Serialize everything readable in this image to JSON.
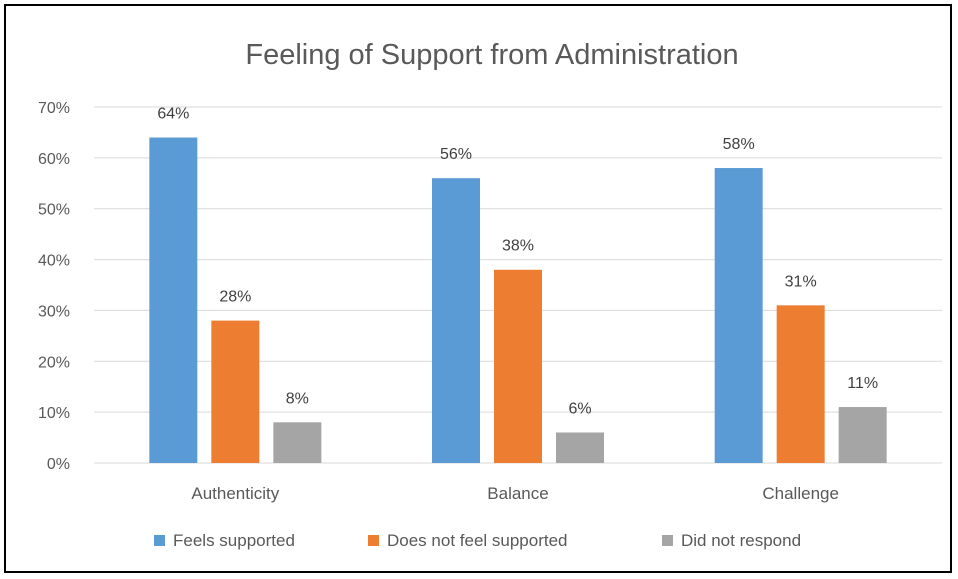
{
  "chart_data": {
    "type": "bar",
    "title": "Feeling of Support from Administration",
    "categories": [
      "Authenticity",
      "Balance",
      "Challenge"
    ],
    "series": [
      {
        "name": "Feels supported",
        "values": [
          64,
          56,
          58
        ],
        "color": "#5B9BD5",
        "labels": [
          "64%",
          "56%",
          "58%"
        ]
      },
      {
        "name": "Does not feel supported",
        "values": [
          28,
          38,
          31
        ],
        "color": "#ED7D31",
        "labels": [
          "28%",
          "38%",
          "31%"
        ]
      },
      {
        "name": "Did not respond",
        "values": [
          8,
          6,
          11
        ],
        "color": "#A5A5A5",
        "labels": [
          "8%",
          "6%",
          "11%"
        ]
      }
    ],
    "ylim": [
      0,
      70
    ],
    "yticks": [
      0,
      10,
      20,
      30,
      40,
      50,
      60,
      70
    ],
    "ytick_labels": [
      "0%",
      "10%",
      "20%",
      "30%",
      "40%",
      "50%",
      "60%",
      "70%"
    ],
    "xlabel": "",
    "ylabel": "",
    "grid": true,
    "legend_position": "bottom"
  }
}
